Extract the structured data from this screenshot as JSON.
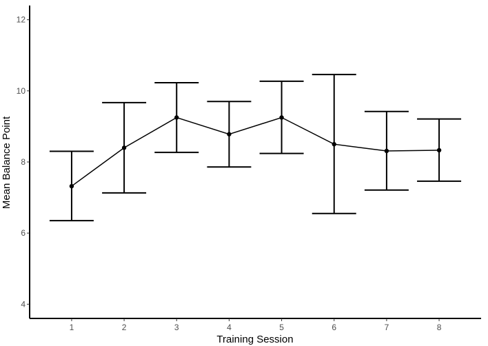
{
  "chart_data": {
    "type": "line",
    "title": "",
    "xlabel": "Training Session",
    "ylabel": "Mean Balance Point",
    "x": [
      1,
      2,
      3,
      4,
      5,
      6,
      7,
      8
    ],
    "x_tick_labels": [
      "1",
      "2",
      "3",
      "4",
      "5",
      "6",
      "7",
      "8"
    ],
    "y_ticks": [
      4,
      6,
      8,
      10,
      12
    ],
    "y_tick_labels": [
      "4",
      "6",
      "8",
      "10",
      "12"
    ],
    "ylim": [
      3.6,
      12.4
    ],
    "xlim": [
      0.2,
      8.8
    ],
    "grid": false,
    "series": [
      {
        "values": [
          7.32,
          8.4,
          9.25,
          8.78,
          9.25,
          8.5,
          8.31,
          8.33
        ],
        "error_lower": [
          6.35,
          7.13,
          8.27,
          7.86,
          8.24,
          6.55,
          7.21,
          7.46
        ],
        "error_upper": [
          8.3,
          9.67,
          10.23,
          9.7,
          10.27,
          10.46,
          9.42,
          9.21
        ]
      }
    ]
  }
}
